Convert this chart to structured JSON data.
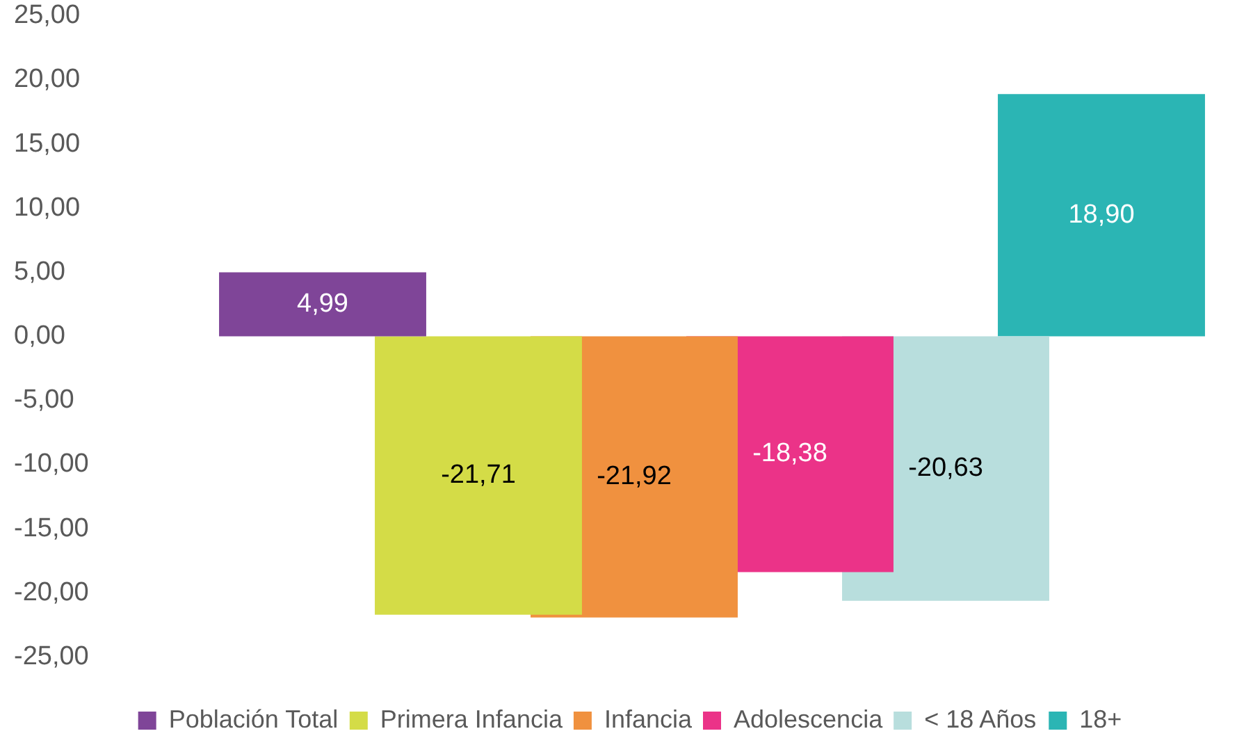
{
  "chart_data": {
    "type": "bar",
    "categories": [
      null
    ],
    "series": [
      {
        "name": "Población Total",
        "color": "#7f4598",
        "values": [
          4.99
        ],
        "value_labels": [
          "4,99"
        ]
      },
      {
        "name": "Primera Infancia",
        "color": "#d4dc47",
        "values": [
          -21.71
        ],
        "value_labels": [
          "-21,71"
        ]
      },
      {
        "name": "Infancia",
        "color": "#f0913f",
        "values": [
          -21.92
        ],
        "value_labels": [
          "-21,92"
        ]
      },
      {
        "name": "Adolescencia",
        "color": "#eb3388",
        "values": [
          -18.38
        ],
        "value_labels": [
          "-18,38"
        ]
      },
      {
        "name": "< 18 Años",
        "color": "#b8dedd",
        "values": [
          -20.63
        ],
        "value_labels": [
          "-20,63"
        ]
      },
      {
        "name": "18+",
        "color": "#2bb5b4",
        "values": [
          18.9
        ],
        "value_labels": [
          "18,90"
        ]
      }
    ],
    "ylim": [
      -25,
      25
    ],
    "yticks": [
      {
        "value": -25,
        "label": "-25,00"
      },
      {
        "value": -20,
        "label": "-20,00"
      },
      {
        "value": -15,
        "label": "-15,00"
      },
      {
        "value": -10,
        "label": "-10,00"
      },
      {
        "value": -5,
        "label": "-5,00"
      },
      {
        "value": 0,
        "label": "0,00"
      },
      {
        "value": 5,
        "label": "5,00"
      },
      {
        "value": 10,
        "label": "10,00"
      },
      {
        "value": 15,
        "label": "15,00"
      },
      {
        "value": 20,
        "label": "20,00"
      },
      {
        "value": 25,
        "label": "25,00"
      }
    ],
    "grid": false,
    "legend": "bottom"
  }
}
